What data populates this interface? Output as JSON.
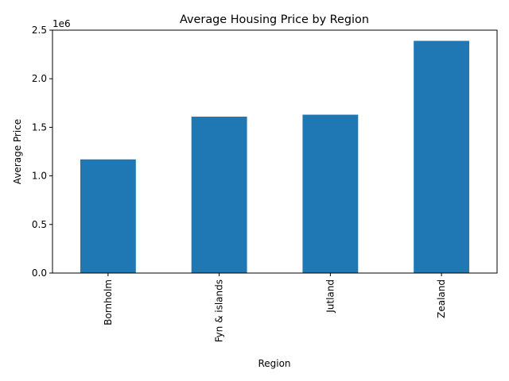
{
  "chart_data": {
    "type": "bar",
    "title": "Average Housing Price by Region",
    "xlabel": "Region",
    "ylabel": "Average Price",
    "y_offset_label": "1e6",
    "categories": [
      "Bornholm",
      "Fyn & islands",
      "Jutland",
      "Zealand"
    ],
    "values": [
      1170000,
      1610000,
      1630000,
      2390000
    ],
    "ylim": [
      0,
      2500000
    ],
    "yticks": [
      0,
      500000,
      1000000,
      1500000,
      2000000,
      2500000
    ],
    "ytick_labels": [
      "0.0",
      "0.5",
      "1.0",
      "1.5",
      "2.0",
      "2.5"
    ],
    "grid": false,
    "legend": "none",
    "bar_color": "#1f77b4"
  }
}
